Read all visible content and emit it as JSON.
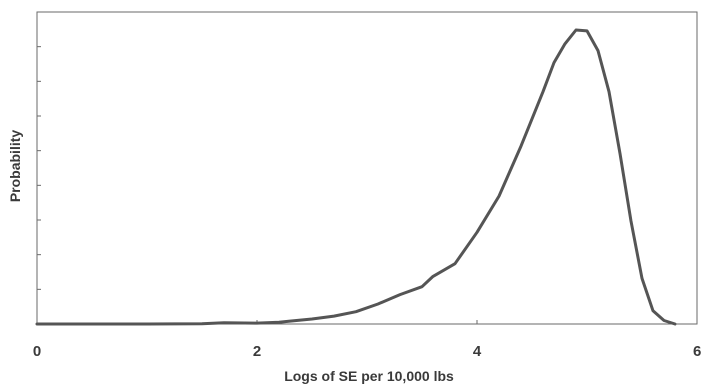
{
  "chart_data": {
    "type": "line",
    "xlabel": "Logs of SE per 10,000 lbs",
    "ylabel": "Probability",
    "xlim": [
      0,
      6
    ],
    "ylim": [
      0,
      1
    ],
    "x_ticks": [
      "0",
      "2",
      "4",
      "6"
    ],
    "grid": false,
    "legend": "none",
    "colors": {
      "line": "#555555",
      "axes": "#6a6a6a",
      "text": "#3a3a3a"
    },
    "series": [
      {
        "x": [
          0,
          0.5,
          1.0,
          1.5,
          1.7,
          2.0,
          2.2,
          2.3,
          2.5,
          2.7,
          2.9,
          3.1,
          3.3,
          3.5,
          3.6,
          3.8,
          4.0,
          4.2,
          4.4,
          4.6,
          4.7,
          4.8,
          4.9,
          5.0,
          5.1,
          5.2,
          5.3,
          5.4,
          5.5,
          5.6,
          5.7,
          5.8
        ],
        "y": [
          0,
          0,
          0,
          0.001,
          0.004,
          0.003,
          0.006,
          0.01,
          0.017,
          0.027,
          0.042,
          0.068,
          0.1,
          0.127,
          0.162,
          0.205,
          0.312,
          0.435,
          0.605,
          0.79,
          0.889,
          0.953,
          1.0,
          0.997,
          0.93,
          0.79,
          0.58,
          0.35,
          0.155,
          0.045,
          0.012,
          0.0
        ]
      }
    ]
  }
}
